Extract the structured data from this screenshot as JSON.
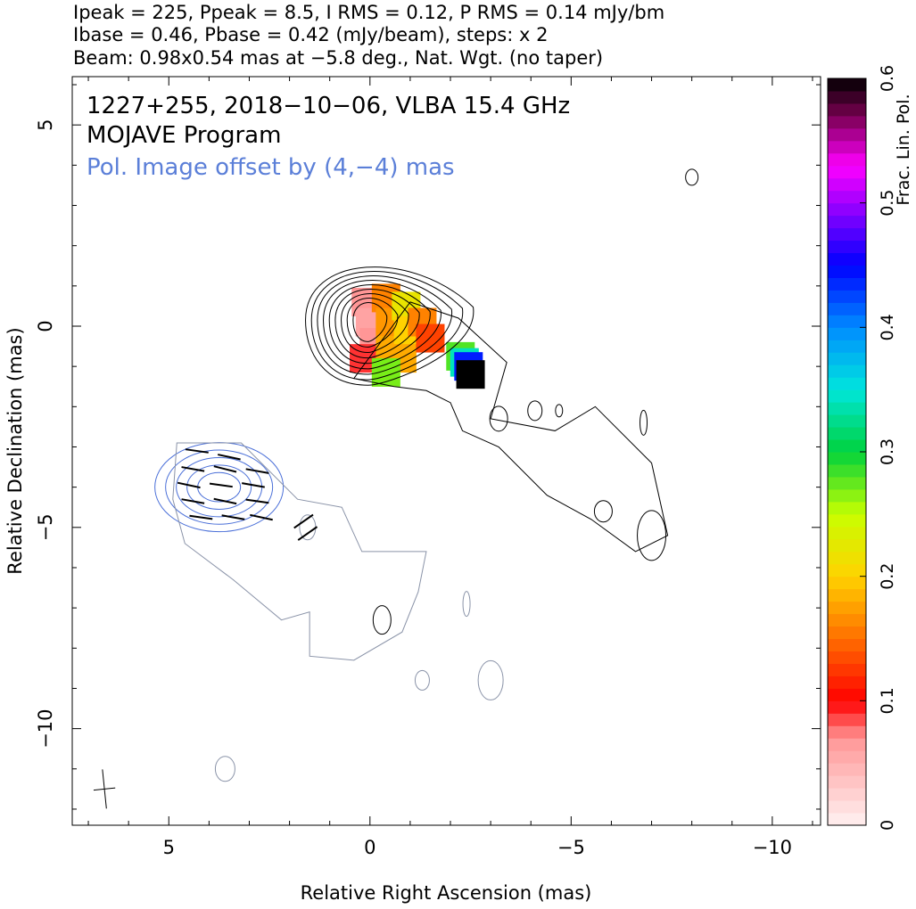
{
  "header": {
    "line1": "Ipeak = 225, Ppeak = 8.5, I RMS = 0.12, P RMS = 0.14 mJy/bm",
    "line2": "Ibase = 0.46, Pbase = 0.42 (mJy/beam), steps: x 2",
    "line3": "Beam: 0.98x0.54 mas at −5.8 deg., Nat. Wgt. (no taper)"
  },
  "colors": {
    "total_intensity_contours": "#000000",
    "pol_contours": "#4a6fd8",
    "pol_outer_contours": "#8a93a8",
    "pol_label": "#5b7fd8"
  },
  "chart_data": {
    "type": "heatmap",
    "annotations": {
      "source_line": "1227+255, 2018−10−06, VLBA 15.4 GHz",
      "program": "MOJAVE Program",
      "pol_offset": "Pol. Image offset by (4,−4) mas"
    },
    "xlabel": "Relative Right Ascension (mas)",
    "ylabel": "Relative Declination (mas)",
    "xlim": [
      7.4,
      -11.2
    ],
    "ylim": [
      -12.4,
      6.2
    ],
    "x_ticks": [
      5,
      0,
      -5,
      -10
    ],
    "x_tick_labels": [
      "5",
      "0",
      "−5",
      "−10"
    ],
    "y_ticks": [
      5,
      0,
      -5,
      -10
    ],
    "y_tick_labels": [
      "5",
      "0",
      "−5",
      "−10"
    ],
    "colorbar": {
      "label": "Frac. Lin. Pol.",
      "range": [
        0,
        0.6
      ],
      "ticks": [
        0,
        0.1,
        0.2,
        0.3,
        0.4,
        0.5,
        0.6
      ],
      "tick_labels": [
        "0",
        "0.1",
        "0.2",
        "0.3",
        "0.4",
        "0.5",
        "0.6"
      ]
    },
    "core_intensity_contours": {
      "center": [
        0.05,
        0.15
      ],
      "levels": 9
    },
    "pol_offset_contours": {
      "center": [
        3.75,
        -4.0
      ],
      "levels": 5
    },
    "frac_pol_map": [
      {
        "x": 0.1,
        "y": 0.6,
        "v": 0.07
      },
      {
        "x": 0.0,
        "y": 0.1,
        "v": 0.06
      },
      {
        "x": -0.1,
        "y": -0.4,
        "v": 0.07
      },
      {
        "x": 0.15,
        "y": -0.8,
        "v": 0.09
      },
      {
        "x": -0.4,
        "y": 0.7,
        "v": 0.16
      },
      {
        "x": -0.5,
        "y": 0.1,
        "v": 0.17
      },
      {
        "x": -0.5,
        "y": -0.6,
        "v": 0.18
      },
      {
        "x": -0.9,
        "y": 0.5,
        "v": 0.22
      },
      {
        "x": -0.95,
        "y": -0.1,
        "v": 0.2
      },
      {
        "x": -0.8,
        "y": -0.8,
        "v": 0.18
      },
      {
        "x": -1.3,
        "y": 0.1,
        "v": 0.16
      },
      {
        "x": -1.5,
        "y": -0.3,
        "v": 0.13
      },
      {
        "x": -2.25,
        "y": -0.75,
        "v": 0.28
      },
      {
        "x": -2.35,
        "y": -0.9,
        "v": 0.34
      },
      {
        "x": -2.45,
        "y": -1.0,
        "v": 0.44
      },
      {
        "x": -2.5,
        "y": -1.2,
        "v": 0.6
      },
      {
        "x": -0.4,
        "y": -1.15,
        "v": 0.27
      }
    ],
    "evpa_vectors": [
      {
        "x": 4.3,
        "y": -3.1,
        "angle_deg": -8
      },
      {
        "x": 3.5,
        "y": -3.25,
        "angle_deg": -12
      },
      {
        "x": 4.4,
        "y": -3.55,
        "angle_deg": -10
      },
      {
        "x": 3.6,
        "y": -3.55,
        "angle_deg": -14
      },
      {
        "x": 2.8,
        "y": -3.6,
        "angle_deg": -10
      },
      {
        "x": 4.5,
        "y": -3.95,
        "angle_deg": -12
      },
      {
        "x": 3.7,
        "y": -3.95,
        "angle_deg": -8
      },
      {
        "x": 2.9,
        "y": -3.95,
        "angle_deg": -10
      },
      {
        "x": 4.4,
        "y": -4.35,
        "angle_deg": -10
      },
      {
        "x": 3.6,
        "y": -4.35,
        "angle_deg": -12
      },
      {
        "x": 2.8,
        "y": -4.35,
        "angle_deg": -8
      },
      {
        "x": 4.2,
        "y": -4.75,
        "angle_deg": -8
      },
      {
        "x": 3.4,
        "y": -4.75,
        "angle_deg": -10
      },
      {
        "x": 2.7,
        "y": -4.75,
        "angle_deg": -12
      },
      {
        "x": 1.65,
        "y": -4.85,
        "angle_deg": 35
      },
      {
        "x": 1.55,
        "y": -5.15,
        "angle_deg": 35
      }
    ],
    "beam": {
      "major_mas": 0.98,
      "minor_mas": 0.54,
      "pa_deg": -5.8,
      "center": [
        6.6,
        -11.5
      ]
    }
  }
}
